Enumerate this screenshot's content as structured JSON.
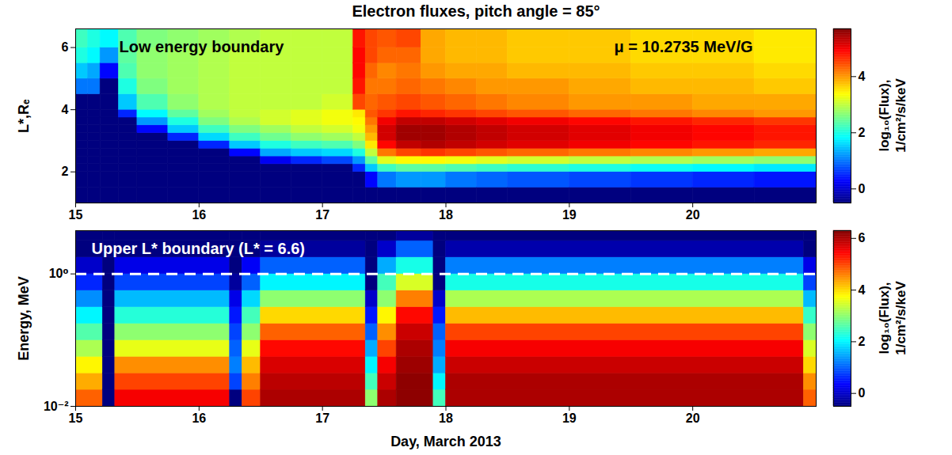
{
  "chart_data": [
    {
      "type": "heatmap",
      "title": "Electron fluxes, pitch angle = 85°",
      "ylabel": "L*,Rₑ",
      "color": "jet",
      "xlim": [
        15,
        21
      ],
      "xticks": [
        15,
        16,
        17,
        18,
        19,
        20
      ],
      "ylim": [
        1,
        6.6
      ],
      "yticks": [
        2,
        4,
        6
      ],
      "annotations": [
        {
          "text": "Low energy boundary",
          "color": "#000000"
        },
        {
          "text": "μ = 10.2735 MeV/G",
          "color": "#000000"
        }
      ],
      "x_edges": [
        15,
        15.1,
        15.2,
        15.35,
        15.5,
        15.75,
        16,
        16.25,
        16.5,
        16.75,
        17,
        17.25,
        17.35,
        17.45,
        17.6,
        17.8,
        18,
        18.25,
        18.5,
        19,
        19.5,
        20,
        20.5,
        21
      ],
      "y_edges": [
        1,
        1.5,
        2,
        2.25,
        2.5,
        2.75,
        3,
        3.25,
        3.5,
        3.75,
        4,
        4.5,
        5,
        5.5,
        6,
        6.6
      ],
      "values": [
        [
          -0.5,
          -0.5,
          -0.5,
          -0.5,
          -0.5,
          -0.5,
          -0.5,
          -0.5,
          -0.5,
          -0.5,
          -0.5,
          1.0,
          1.5,
          2.0,
          2.2
        ],
        [
          -0.5,
          -0.5,
          -0.5,
          -0.5,
          -0.5,
          -0.5,
          -0.5,
          -0.5,
          -0.5,
          -0.5,
          -0.5,
          1.0,
          1.3,
          1.8,
          2.0
        ],
        [
          -0.5,
          -0.5,
          -0.5,
          -0.5,
          -0.5,
          -0.5,
          -0.5,
          -0.5,
          -0.5,
          -0.5,
          -0.5,
          -0.5,
          0.3,
          1.2,
          1.8
        ],
        [
          -0.5,
          -0.5,
          -0.5,
          -0.5,
          -0.5,
          -0.5,
          -0.5,
          -0.5,
          -0.5,
          0.5,
          1.5,
          2.0,
          2.3,
          2.4,
          2.3
        ],
        [
          -0.5,
          -0.5,
          -0.5,
          -0.5,
          -0.5,
          -0.5,
          -0.5,
          0.3,
          1.2,
          1.8,
          2.3,
          2.6,
          2.7,
          2.7,
          2.6
        ],
        [
          -0.5,
          -0.5,
          -0.5,
          -0.5,
          -0.5,
          -0.5,
          0.5,
          1.5,
          2.0,
          2.4,
          2.7,
          2.8,
          2.8,
          2.8,
          2.7
        ],
        [
          -0.5,
          -0.5,
          -0.5,
          -0.5,
          -0.5,
          0.5,
          1.6,
          2.2,
          2.6,
          2.8,
          2.9,
          2.9,
          2.9,
          2.9,
          2.8
        ],
        [
          -0.5,
          -0.5,
          -0.5,
          -0.5,
          0.3,
          1.5,
          2.2,
          2.6,
          2.9,
          3.0,
          3.0,
          3.0,
          3.0,
          3.0,
          2.9
        ],
        [
          -0.5,
          -0.5,
          -0.5,
          0.2,
          1.3,
          2.0,
          2.5,
          2.8,
          3.1,
          3.1,
          3.0,
          3.0,
          3.0,
          3.0,
          3.0
        ],
        [
          -0.5,
          -0.5,
          -0.5,
          0.5,
          1.5,
          2.2,
          2.7,
          3.0,
          3.2,
          3.2,
          3.0,
          3.0,
          3.0,
          3.0,
          3.0
        ],
        [
          -0.5,
          -0.5,
          -0.5,
          0.7,
          1.6,
          2.3,
          2.8,
          3.1,
          3.3,
          3.3,
          3.1,
          3.0,
          3.0,
          3.0,
          3.0
        ],
        [
          -0.5,
          -0.5,
          0.5,
          1.2,
          2.0,
          2.6,
          3.0,
          3.3,
          3.4,
          3.5,
          4.5,
          4.8,
          4.9,
          4.9,
          4.8
        ],
        [
          -0.5,
          0.3,
          1.5,
          2.4,
          3.0,
          3.5,
          3.8,
          4.0,
          4.2,
          4.4,
          4.3,
          4.2,
          4.3,
          4.5,
          4.5
        ],
        [
          -0.5,
          1.0,
          2.2,
          3.2,
          4.2,
          4.9,
          5.2,
          5.2,
          5.0,
          4.6,
          4.4,
          4.2,
          4.1,
          4.3,
          4.4
        ],
        [
          -0.5,
          1.2,
          2.4,
          3.4,
          4.5,
          5.3,
          5.5,
          5.5,
          5.3,
          4.8,
          4.5,
          4.3,
          4.2,
          4.3,
          4.5
        ],
        [
          -0.5,
          1.2,
          2.4,
          3.4,
          4.6,
          5.4,
          5.5,
          5.5,
          5.3,
          4.7,
          4.4,
          4.2,
          4.0,
          3.9,
          3.9
        ],
        [
          -0.5,
          1.0,
          2.3,
          3.3,
          4.5,
          5.3,
          5.4,
          5.4,
          5.2,
          4.6,
          4.3,
          4.1,
          3.9,
          3.8,
          3.8
        ],
        [
          -0.5,
          0.9,
          2.2,
          3.2,
          4.4,
          5.2,
          5.3,
          5.3,
          5.1,
          4.5,
          4.2,
          4.0,
          3.9,
          3.8,
          3.8
        ],
        [
          -0.5,
          0.8,
          2.1,
          3.1,
          4.3,
          5.1,
          5.2,
          5.2,
          5.0,
          4.4,
          4.1,
          4.0,
          3.8,
          3.7,
          3.7
        ],
        [
          -0.5,
          0.7,
          2.0,
          3.0,
          4.2,
          5.0,
          5.1,
          5.1,
          4.9,
          4.3,
          4.0,
          3.9,
          3.8,
          3.7,
          3.7
        ],
        [
          -0.5,
          0.6,
          1.9,
          2.9,
          4.1,
          4.9,
          5.0,
          5.0,
          4.8,
          4.2,
          4.0,
          3.8,
          3.7,
          3.6,
          3.6
        ],
        [
          -0.5,
          0.5,
          1.8,
          2.8,
          4.0,
          4.8,
          4.9,
          4.9,
          4.7,
          4.1,
          3.9,
          3.8,
          3.7,
          3.6,
          3.6
        ],
        [
          -0.5,
          0.4,
          1.7,
          2.7,
          3.9,
          4.7,
          4.8,
          4.8,
          4.6,
          4.0,
          3.9,
          3.7,
          3.6,
          3.5,
          3.5
        ]
      ],
      "colorbar": {
        "label": "log₁₀(Flux), 1/cm²/s/keV",
        "lim": [
          -0.5,
          5.7
        ],
        "ticks": [
          0,
          2,
          4
        ]
      }
    },
    {
      "type": "heatmap",
      "xlabel": "Day, March 2013",
      "ylabel": "Energy, MeV",
      "color": "jet",
      "log": "y",
      "xlim": [
        15,
        21
      ],
      "xticks": [
        15,
        16,
        17,
        18,
        19,
        20
      ],
      "ylim": [
        0.01,
        4.5
      ],
      "yticks": [
        {
          "value": 0.01,
          "label": "10⁻²"
        },
        {
          "value": 1,
          "label": "10⁰"
        }
      ],
      "annotations": [
        {
          "text": "Upper L* boundary (L* = 6.6)",
          "color": "#ffffff"
        }
      ],
      "hlines": [
        {
          "value": 1,
          "color": "#ffffff",
          "line_style": "dashed"
        }
      ],
      "x_edges": [
        15,
        15.22,
        15.32,
        16.25,
        16.35,
        16.5,
        17.35,
        17.45,
        17.6,
        17.9,
        18,
        20.9,
        21
      ],
      "y_edges": [
        0.01,
        0.0178,
        0.0316,
        0.0562,
        0.1,
        0.178,
        0.316,
        0.562,
        1,
        1.78,
        3.16,
        4.5
      ],
      "values": [
        [
          4.8,
          4.3,
          3.8,
          3.2,
          2.6,
          2.0,
          1.3,
          0.6,
          0,
          -0.5,
          -0.5
        ],
        [
          -0.5,
          -0.5,
          -0.5,
          -0.5,
          -0.5,
          -0.5,
          -0.5,
          -0.5,
          -0.5,
          -0.5,
          -0.5
        ],
        [
          5.5,
          5.0,
          4.5,
          3.6,
          3.0,
          2.3,
          1.6,
          0.8,
          0.2,
          -0.5,
          -0.5
        ],
        [
          -0.5,
          0.8,
          1.2,
          1.0,
          0.8,
          0.5,
          0.2,
          -0.3,
          -0.5,
          -0.5,
          -0.5
        ],
        [
          5.0,
          4.6,
          4.2,
          3.6,
          3.0,
          2.5,
          1.8,
          1.0,
          0.3,
          -0.5,
          -0.5
        ],
        [
          6.0,
          5.9,
          5.7,
          5.4,
          4.8,
          4.0,
          3.0,
          2.0,
          1.0,
          -0.3,
          -0.5
        ],
        [
          3,
          2.5,
          2,
          1.5,
          1,
          0.5,
          0,
          -0.5,
          -0.5,
          -0.5,
          -0.5
        ],
        [
          6,
          5.8,
          5.5,
          5,
          4.5,
          3.8,
          3.0,
          2.5,
          1.5,
          0,
          -0.5
        ],
        [
          6.2,
          6.2,
          6.1,
          6.0,
          5.8,
          5.4,
          4.6,
          3.5,
          2.2,
          1.0,
          -0.3
        ],
        [
          2.5,
          2,
          1.5,
          1.2,
          1,
          0.5,
          0,
          -0.5,
          -0.5,
          -0.5,
          -0.5
        ],
        [
          6.0,
          6.0,
          5.8,
          5.5,
          5.0,
          4.2,
          3.2,
          2.2,
          1.2,
          -0.2,
          -0.5
        ],
        [
          4.8,
          4.5,
          4,
          3.5,
          3,
          2.4,
          1.6,
          0.8,
          0.2,
          -0.5,
          -0.5
        ]
      ],
      "colorbar": {
        "label": "log₁₀(Flux), 1/cm²/s/keV",
        "lim": [
          -0.5,
          6.3
        ],
        "ticks": [
          0,
          2,
          4,
          6
        ]
      }
    }
  ]
}
